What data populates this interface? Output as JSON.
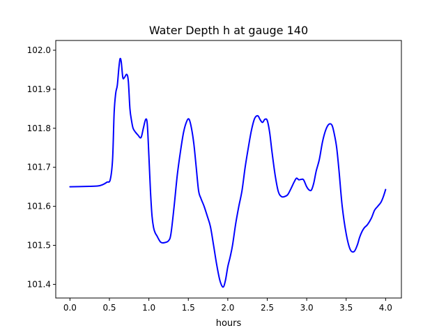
{
  "chart_data": {
    "type": "line",
    "title": "Water Depth h at gauge 140",
    "xlabel": "hours",
    "ylabel": "",
    "xlim": [
      -0.18,
      4.2
    ],
    "ylim": [
      101.365,
      102.025
    ],
    "x_ticks": [
      0.0,
      0.5,
      1.0,
      1.5,
      2.0,
      2.5,
      3.0,
      3.5,
      4.0
    ],
    "x_tick_labels": [
      "0.0",
      "0.5",
      "1.0",
      "1.5",
      "2.0",
      "2.5",
      "3.0",
      "3.5",
      "4.0"
    ],
    "y_ticks": [
      101.4,
      101.5,
      101.6,
      101.7,
      101.8,
      101.9,
      102.0
    ],
    "y_tick_labels": [
      "101.4",
      "101.5",
      "101.6",
      "101.7",
      "101.8",
      "101.9",
      "102.0"
    ],
    "grid": false,
    "legend": false,
    "series": [
      {
        "color": "#0000ff",
        "x": [
          0.0,
          0.2,
          0.35,
          0.42,
          0.47,
          0.51,
          0.54,
          0.56,
          0.58,
          0.6,
          0.62,
          0.635,
          0.65,
          0.67,
          0.69,
          0.72,
          0.74,
          0.76,
          0.78,
          0.8,
          0.83,
          0.86,
          0.9,
          0.93,
          0.96,
          0.98,
          1.0,
          1.02,
          1.04,
          1.06,
          1.08,
          1.1,
          1.15,
          1.2,
          1.25,
          1.28,
          1.32,
          1.36,
          1.4,
          1.44,
          1.48,
          1.51,
          1.54,
          1.57,
          1.6,
          1.63,
          1.66,
          1.7,
          1.74,
          1.78,
          1.82,
          1.86,
          1.9,
          1.94,
          1.97,
          2.0,
          2.03,
          2.06,
          2.1,
          2.14,
          2.18,
          2.22,
          2.26,
          2.3,
          2.34,
          2.38,
          2.41,
          2.44,
          2.47,
          2.5,
          2.53,
          2.56,
          2.6,
          2.64,
          2.68,
          2.72,
          2.76,
          2.8,
          2.84,
          2.87,
          2.9,
          2.93,
          2.96,
          3.0,
          3.03,
          3.06,
          3.09,
          3.12,
          3.16,
          3.2,
          3.24,
          3.28,
          3.32,
          3.35,
          3.38,
          3.41,
          3.45,
          3.5,
          3.55,
          3.6,
          3.64,
          3.67,
          3.7,
          3.73,
          3.77,
          3.82,
          3.86,
          3.9,
          3.94,
          3.97,
          4.0
        ],
        "y": [
          101.65,
          101.651,
          101.652,
          101.656,
          101.662,
          101.668,
          101.72,
          101.84,
          101.89,
          101.91,
          101.955,
          101.978,
          101.97,
          101.93,
          101.93,
          101.938,
          101.92,
          101.85,
          101.82,
          101.8,
          101.79,
          101.783,
          101.776,
          101.8,
          101.823,
          101.81,
          101.73,
          101.64,
          101.575,
          101.545,
          101.532,
          101.525,
          101.508,
          101.507,
          101.512,
          101.53,
          101.6,
          101.68,
          101.74,
          101.79,
          101.818,
          101.823,
          101.8,
          101.76,
          101.7,
          101.64,
          101.62,
          101.6,
          101.575,
          101.548,
          101.5,
          101.45,
          101.41,
          101.393,
          101.41,
          101.445,
          101.47,
          101.5,
          101.555,
          101.6,
          101.64,
          101.7,
          101.75,
          101.795,
          101.825,
          101.832,
          101.822,
          101.815,
          101.823,
          101.82,
          101.79,
          101.74,
          101.68,
          101.638,
          101.625,
          101.625,
          101.63,
          101.645,
          101.662,
          101.672,
          101.668,
          101.669,
          101.668,
          101.65,
          101.642,
          101.642,
          101.66,
          101.69,
          101.72,
          101.765,
          101.795,
          101.81,
          101.808,
          101.785,
          101.75,
          101.69,
          101.6,
          101.53,
          101.49,
          101.484,
          101.5,
          101.52,
          101.535,
          101.545,
          101.553,
          101.57,
          101.59,
          101.6,
          101.61,
          101.624,
          101.643
        ]
      }
    ]
  }
}
